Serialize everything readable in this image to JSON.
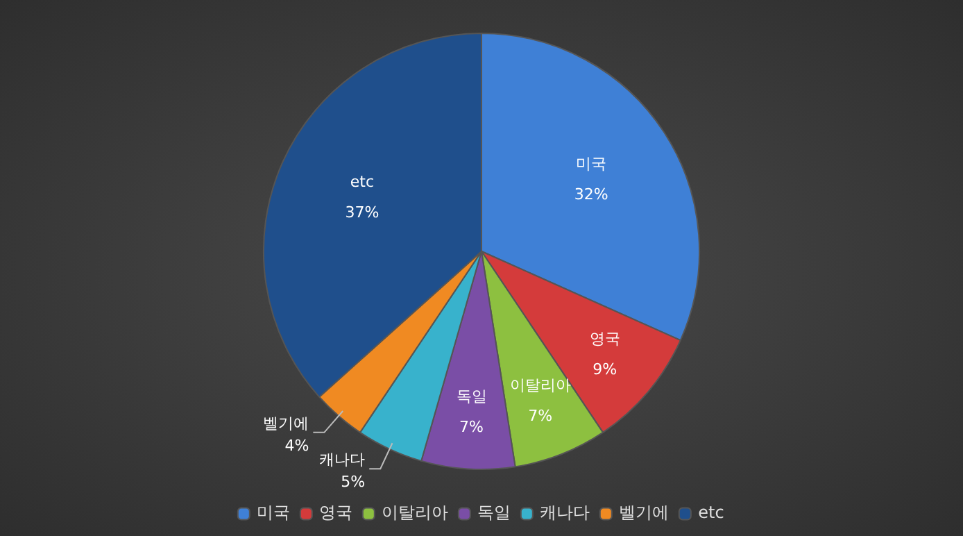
{
  "chart_data": {
    "type": "pie",
    "categories": [
      "미국",
      "영국",
      "이탈리아",
      "독일",
      "캐나다",
      "벨기에",
      "etc"
    ],
    "values": [
      32,
      9,
      7,
      7,
      5,
      4,
      37
    ],
    "value_labels": [
      "32%",
      "9%",
      "7%",
      "7%",
      "5%",
      "4%",
      "37%"
    ],
    "colors": [
      "#3f80d6",
      "#d43b3b",
      "#8dc040",
      "#7a4ea6",
      "#38b2cc",
      "#f08a22",
      "#1f4f8c"
    ],
    "legend": "bottom"
  }
}
